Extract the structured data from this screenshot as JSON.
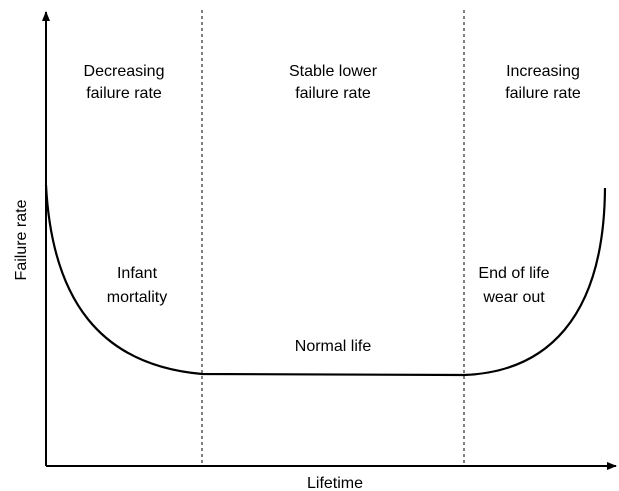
{
  "axes": {
    "x_label": "Lifetime",
    "y_label": "Failure rate"
  },
  "regions": [
    {
      "lines": [
        "Decreasing",
        "failure rate"
      ]
    },
    {
      "lines": [
        "Stable lower",
        "failure rate"
      ]
    },
    {
      "lines": [
        "Increasing",
        "failure rate"
      ]
    }
  ],
  "phases": [
    {
      "lines": [
        "Infant",
        "mortality"
      ]
    },
    {
      "lines": [
        "Normal life"
      ]
    },
    {
      "lines": [
        "End of life",
        "wear out"
      ]
    }
  ]
}
